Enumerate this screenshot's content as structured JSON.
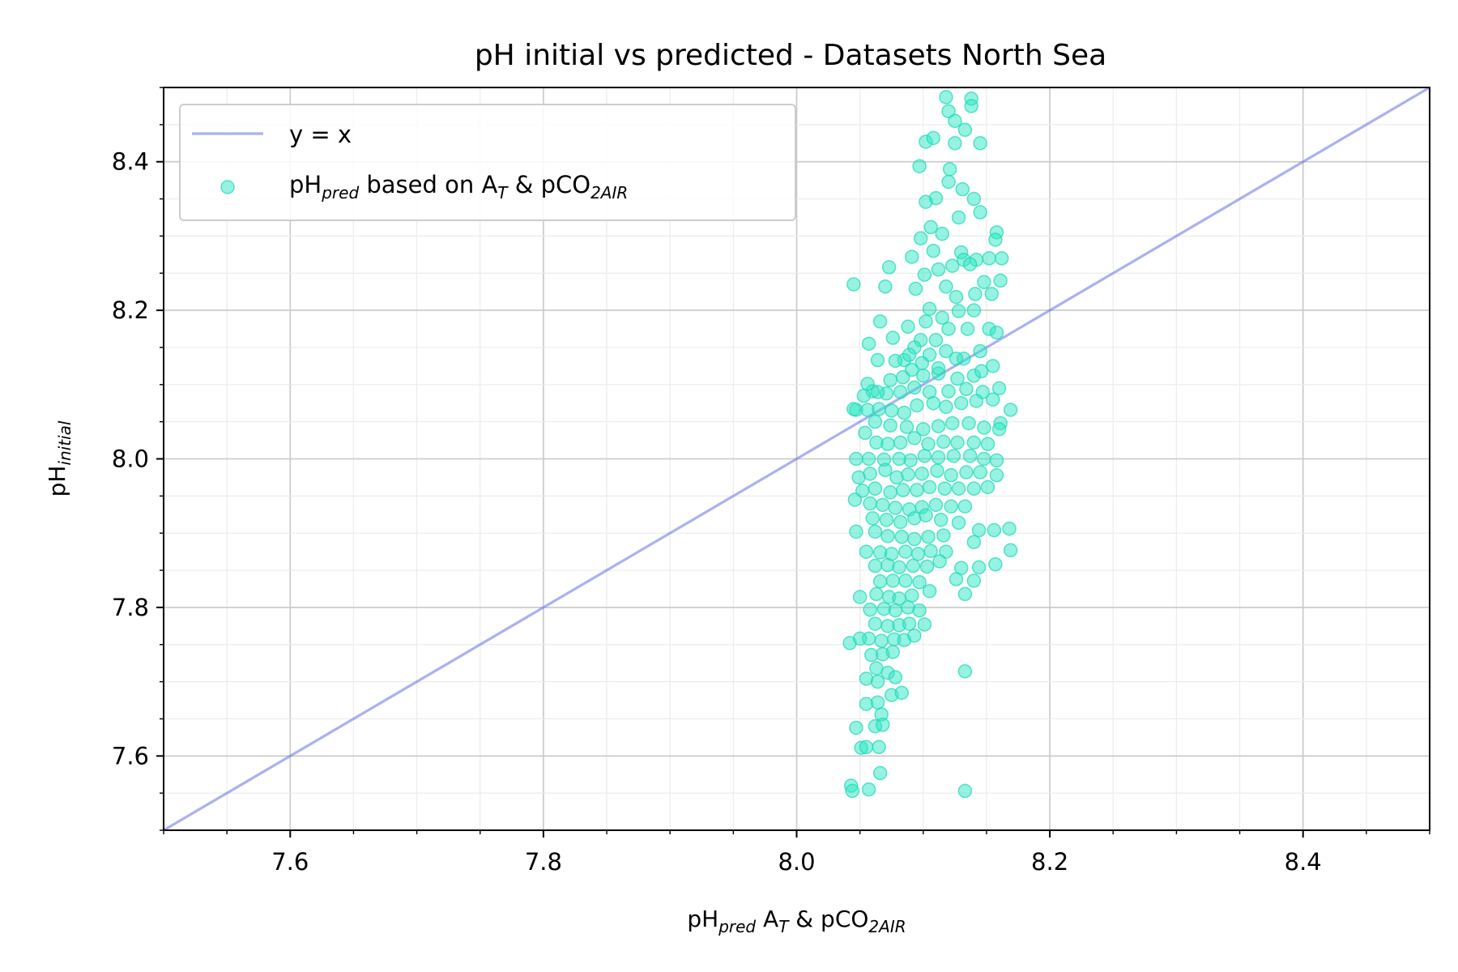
{
  "chart_data": {
    "type": "scatter",
    "title": "pH initial vs predicted - Datasets North Sea",
    "xlabel": {
      "base": "pH",
      "sub": "pred",
      "rest": " A",
      "sub2": "T",
      "rest2": " & pCO",
      "sub3": "2AIR"
    },
    "ylabel": {
      "base": "pH",
      "sub": "initial"
    },
    "xlim": [
      7.5,
      8.5
    ],
    "ylim": [
      7.5,
      8.5
    ],
    "xticks": [
      7.6,
      7.8,
      8.0,
      8.2,
      8.4
    ],
    "yticks": [
      7.6,
      7.8,
      8.0,
      8.2,
      8.4
    ],
    "xtick_labels": [
      "7.6",
      "7.8",
      "8.0",
      "8.2",
      "8.4"
    ],
    "ytick_labels": [
      "7.6",
      "7.8",
      "8.0",
      "8.2",
      "8.4"
    ],
    "minor_step": 0.05,
    "grid": true,
    "legend_position": "top-left",
    "colors": {
      "line": "#6670e6",
      "points": "#2ee6c3",
      "points_edge": "#1bd9b5",
      "major_grid": "#c8c8c8",
      "minor_grid": "#ececec"
    },
    "legend": {
      "line_label": "y = x",
      "scatter_label": {
        "base": "pH",
        "sub": "pred",
        "rest": " based on A",
        "sub2": "T",
        "rest2": " & pCO",
        "sub3": "2AIR"
      }
    },
    "series": [
      {
        "type": "line",
        "x": [
          7.5,
          8.5
        ],
        "y": [
          7.5,
          8.5
        ]
      },
      {
        "type": "scatter",
        "points": [
          [
            8.118,
            8.487
          ],
          [
            8.138,
            8.485
          ],
          [
            8.12,
            8.468
          ],
          [
            8.125,
            8.455
          ],
          [
            8.138,
            8.475
          ],
          [
            8.133,
            8.443
          ],
          [
            8.125,
            8.425
          ],
          [
            8.102,
            8.427
          ],
          [
            8.108,
            8.432
          ],
          [
            8.145,
            8.425
          ],
          [
            8.121,
            8.39
          ],
          [
            8.097,
            8.394
          ],
          [
            8.12,
            8.373
          ],
          [
            8.11,
            8.351
          ],
          [
            8.102,
            8.346
          ],
          [
            8.131,
            8.363
          ],
          [
            8.14,
            8.35
          ],
          [
            8.145,
            8.332
          ],
          [
            8.128,
            8.325
          ],
          [
            8.106,
            8.312
          ],
          [
            8.115,
            8.303
          ],
          [
            8.158,
            8.305
          ],
          [
            8.157,
            8.295
          ],
          [
            8.098,
            8.297
          ],
          [
            8.108,
            8.28
          ],
          [
            8.13,
            8.278
          ],
          [
            8.132,
            8.268
          ],
          [
            8.142,
            8.268
          ],
          [
            8.152,
            8.27
          ],
          [
            8.162,
            8.27
          ],
          [
            8.091,
            8.272
          ],
          [
            8.101,
            8.248
          ],
          [
            8.112,
            8.255
          ],
          [
            8.123,
            8.26
          ],
          [
            8.137,
            8.262
          ],
          [
            8.148,
            8.238
          ],
          [
            8.161,
            8.24
          ],
          [
            8.118,
            8.232
          ],
          [
            8.126,
            8.218
          ],
          [
            8.141,
            8.222
          ],
          [
            8.154,
            8.222
          ],
          [
            8.094,
            8.229
          ],
          [
            8.073,
            8.258
          ],
          [
            8.07,
            8.232
          ],
          [
            8.045,
            8.235
          ],
          [
            8.105,
            8.202
          ],
          [
            8.115,
            8.19
          ],
          [
            8.128,
            8.199
          ],
          [
            8.14,
            8.2
          ],
          [
            8.102,
            8.185
          ],
          [
            8.088,
            8.178
          ],
          [
            8.098,
            8.16
          ],
          [
            8.11,
            8.16
          ],
          [
            8.12,
            8.175
          ],
          [
            8.135,
            8.175
          ],
          [
            8.152,
            8.175
          ],
          [
            8.093,
            8.15
          ],
          [
            8.105,
            8.14
          ],
          [
            8.118,
            8.145
          ],
          [
            8.132,
            8.135
          ],
          [
            8.145,
            8.145
          ],
          [
            8.158,
            8.17
          ],
          [
            8.066,
            8.185
          ],
          [
            8.076,
            8.163
          ],
          [
            8.085,
            8.133
          ],
          [
            8.078,
            8.132
          ],
          [
            8.057,
            8.155
          ],
          [
            8.064,
            8.133
          ],
          [
            8.091,
            8.12
          ],
          [
            8.1,
            8.112
          ],
          [
            8.112,
            8.115
          ],
          [
            8.127,
            8.108
          ],
          [
            8.14,
            8.112
          ],
          [
            8.155,
            8.125
          ],
          [
            8.16,
            8.095
          ],
          [
            8.147,
            8.09
          ],
          [
            8.134,
            8.094
          ],
          [
            8.12,
            8.091
          ],
          [
            8.105,
            8.09
          ],
          [
            8.093,
            8.096
          ],
          [
            8.082,
            8.09
          ],
          [
            8.071,
            8.088
          ],
          [
            8.06,
            8.091
          ],
          [
            8.053,
            8.085
          ],
          [
            8.047,
            8.066
          ],
          [
            8.056,
            8.066
          ],
          [
            8.065,
            8.067
          ],
          [
            8.075,
            8.065
          ],
          [
            8.085,
            8.062
          ],
          [
            8.095,
            8.072
          ],
          [
            8.108,
            8.075
          ],
          [
            8.118,
            8.07
          ],
          [
            8.13,
            8.075
          ],
          [
            8.142,
            8.078
          ],
          [
            8.155,
            8.08
          ],
          [
            8.169,
            8.066
          ],
          [
            8.161,
            8.048
          ],
          [
            8.148,
            8.042
          ],
          [
            8.136,
            8.048
          ],
          [
            8.123,
            8.048
          ],
          [
            8.112,
            8.044
          ],
          [
            8.1,
            8.04
          ],
          [
            8.087,
            8.043
          ],
          [
            8.074,
            8.045
          ],
          [
            8.062,
            8.05
          ],
          [
            8.054,
            8.035
          ],
          [
            8.063,
            8.022
          ],
          [
            8.072,
            8.02
          ],
          [
            8.082,
            8.022
          ],
          [
            8.093,
            8.028
          ],
          [
            8.104,
            8.02
          ],
          [
            8.116,
            8.023
          ],
          [
            8.127,
            8.022
          ],
          [
            8.14,
            8.022
          ],
          [
            8.151,
            8.02
          ],
          [
            8.16,
            8.04
          ],
          [
            8.047,
            8.0
          ],
          [
            8.057,
            8.0
          ],
          [
            8.069,
            7.999
          ],
          [
            8.081,
            8.0
          ],
          [
            8.09,
            7.998
          ],
          [
            8.101,
            8.004
          ],
          [
            8.112,
            8.002
          ],
          [
            8.124,
            8.004
          ],
          [
            8.137,
            8.004
          ],
          [
            8.148,
            8.0
          ],
          [
            8.158,
            7.998
          ],
          [
            8.049,
            7.975
          ],
          [
            8.058,
            7.98
          ],
          [
            8.07,
            7.985
          ],
          [
            8.079,
            7.975
          ],
          [
            8.088,
            7.979
          ],
          [
            8.099,
            7.98
          ],
          [
            8.111,
            7.984
          ],
          [
            8.122,
            7.978
          ],
          [
            8.134,
            7.982
          ],
          [
            8.145,
            7.982
          ],
          [
            8.158,
            7.978
          ],
          [
            8.052,
            7.957
          ],
          [
            8.062,
            7.96
          ],
          [
            8.074,
            7.955
          ],
          [
            8.084,
            7.958
          ],
          [
            8.095,
            7.958
          ],
          [
            8.105,
            7.962
          ],
          [
            8.117,
            7.96
          ],
          [
            8.128,
            7.96
          ],
          [
            8.14,
            7.96
          ],
          [
            8.151,
            7.962
          ],
          [
            8.046,
            7.945
          ],
          [
            8.058,
            7.94
          ],
          [
            8.068,
            7.938
          ],
          [
            8.078,
            7.934
          ],
          [
            8.089,
            7.932
          ],
          [
            8.099,
            7.935
          ],
          [
            8.11,
            7.938
          ],
          [
            8.122,
            7.936
          ],
          [
            8.133,
            7.936
          ],
          [
            8.06,
            7.92
          ],
          [
            8.071,
            7.918
          ],
          [
            8.082,
            7.915
          ],
          [
            8.093,
            7.92
          ],
          [
            8.102,
            7.924
          ],
          [
            8.114,
            7.918
          ],
          [
            8.128,
            7.914
          ],
          [
            8.144,
            7.904
          ],
          [
            8.156,
            7.904
          ],
          [
            8.168,
            7.906
          ],
          [
            8.047,
            7.902
          ],
          [
            8.062,
            7.902
          ],
          [
            8.072,
            7.896
          ],
          [
            8.083,
            7.895
          ],
          [
            8.093,
            7.892
          ],
          [
            8.104,
            7.895
          ],
          [
            8.116,
            7.897
          ],
          [
            8.14,
            7.888
          ],
          [
            8.055,
            7.875
          ],
          [
            8.066,
            7.874
          ],
          [
            8.075,
            7.872
          ],
          [
            8.086,
            7.875
          ],
          [
            8.096,
            7.872
          ],
          [
            8.106,
            7.876
          ],
          [
            8.118,
            7.875
          ],
          [
            8.169,
            7.877
          ],
          [
            8.062,
            7.856
          ],
          [
            8.072,
            7.857
          ],
          [
            8.081,
            7.854
          ],
          [
            8.092,
            7.856
          ],
          [
            8.103,
            7.855
          ],
          [
            8.113,
            7.862
          ],
          [
            8.13,
            7.853
          ],
          [
            8.144,
            7.854
          ],
          [
            8.157,
            7.858
          ],
          [
            8.066,
            7.835
          ],
          [
            8.076,
            7.836
          ],
          [
            8.086,
            7.836
          ],
          [
            8.097,
            7.834
          ],
          [
            8.126,
            7.838
          ],
          [
            8.14,
            7.836
          ],
          [
            8.05,
            7.814
          ],
          [
            8.063,
            7.818
          ],
          [
            8.073,
            7.814
          ],
          [
            8.081,
            7.812
          ],
          [
            8.091,
            7.816
          ],
          [
            8.105,
            7.822
          ],
          [
            8.133,
            7.818
          ],
          [
            8.058,
            7.797
          ],
          [
            8.069,
            7.798
          ],
          [
            8.078,
            7.796
          ],
          [
            8.088,
            7.8
          ],
          [
            8.097,
            7.796
          ],
          [
            8.062,
            7.778
          ],
          [
            8.072,
            7.775
          ],
          [
            8.081,
            7.776
          ],
          [
            8.089,
            7.778
          ],
          [
            8.101,
            7.777
          ],
          [
            8.057,
            7.758
          ],
          [
            8.067,
            7.755
          ],
          [
            8.077,
            7.757
          ],
          [
            8.085,
            7.756
          ],
          [
            8.093,
            7.762
          ],
          [
            8.042,
            7.752
          ],
          [
            8.05,
            7.758
          ],
          [
            8.059,
            7.736
          ],
          [
            8.068,
            7.737
          ],
          [
            8.076,
            7.74
          ],
          [
            8.063,
            7.718
          ],
          [
            8.072,
            7.712
          ],
          [
            8.055,
            7.704
          ],
          [
            8.064,
            7.7
          ],
          [
            8.078,
            7.706
          ],
          [
            8.133,
            7.714
          ],
          [
            8.075,
            7.682
          ],
          [
            8.083,
            7.685
          ],
          [
            8.055,
            7.67
          ],
          [
            8.064,
            7.672
          ],
          [
            8.067,
            7.656
          ],
          [
            8.047,
            7.638
          ],
          [
            8.062,
            7.64
          ],
          [
            8.068,
            7.642
          ],
          [
            8.051,
            7.611
          ],
          [
            8.055,
            7.612
          ],
          [
            8.065,
            7.612
          ],
          [
            8.066,
            7.577
          ],
          [
            8.043,
            7.56
          ],
          [
            8.044,
            7.553
          ],
          [
            8.057,
            7.555
          ],
          [
            8.133,
            7.553
          ],
          [
            8.045,
            8.067
          ],
          [
            8.056,
            8.101
          ],
          [
            8.064,
            8.09
          ],
          [
            8.074,
            8.106
          ],
          [
            8.084,
            8.11
          ],
          [
            8.126,
            8.135
          ],
          [
            8.112,
            8.122
          ],
          [
            8.099,
            8.129
          ],
          [
            8.089,
            8.14
          ],
          [
            8.146,
            8.118
          ]
        ]
      }
    ]
  }
}
